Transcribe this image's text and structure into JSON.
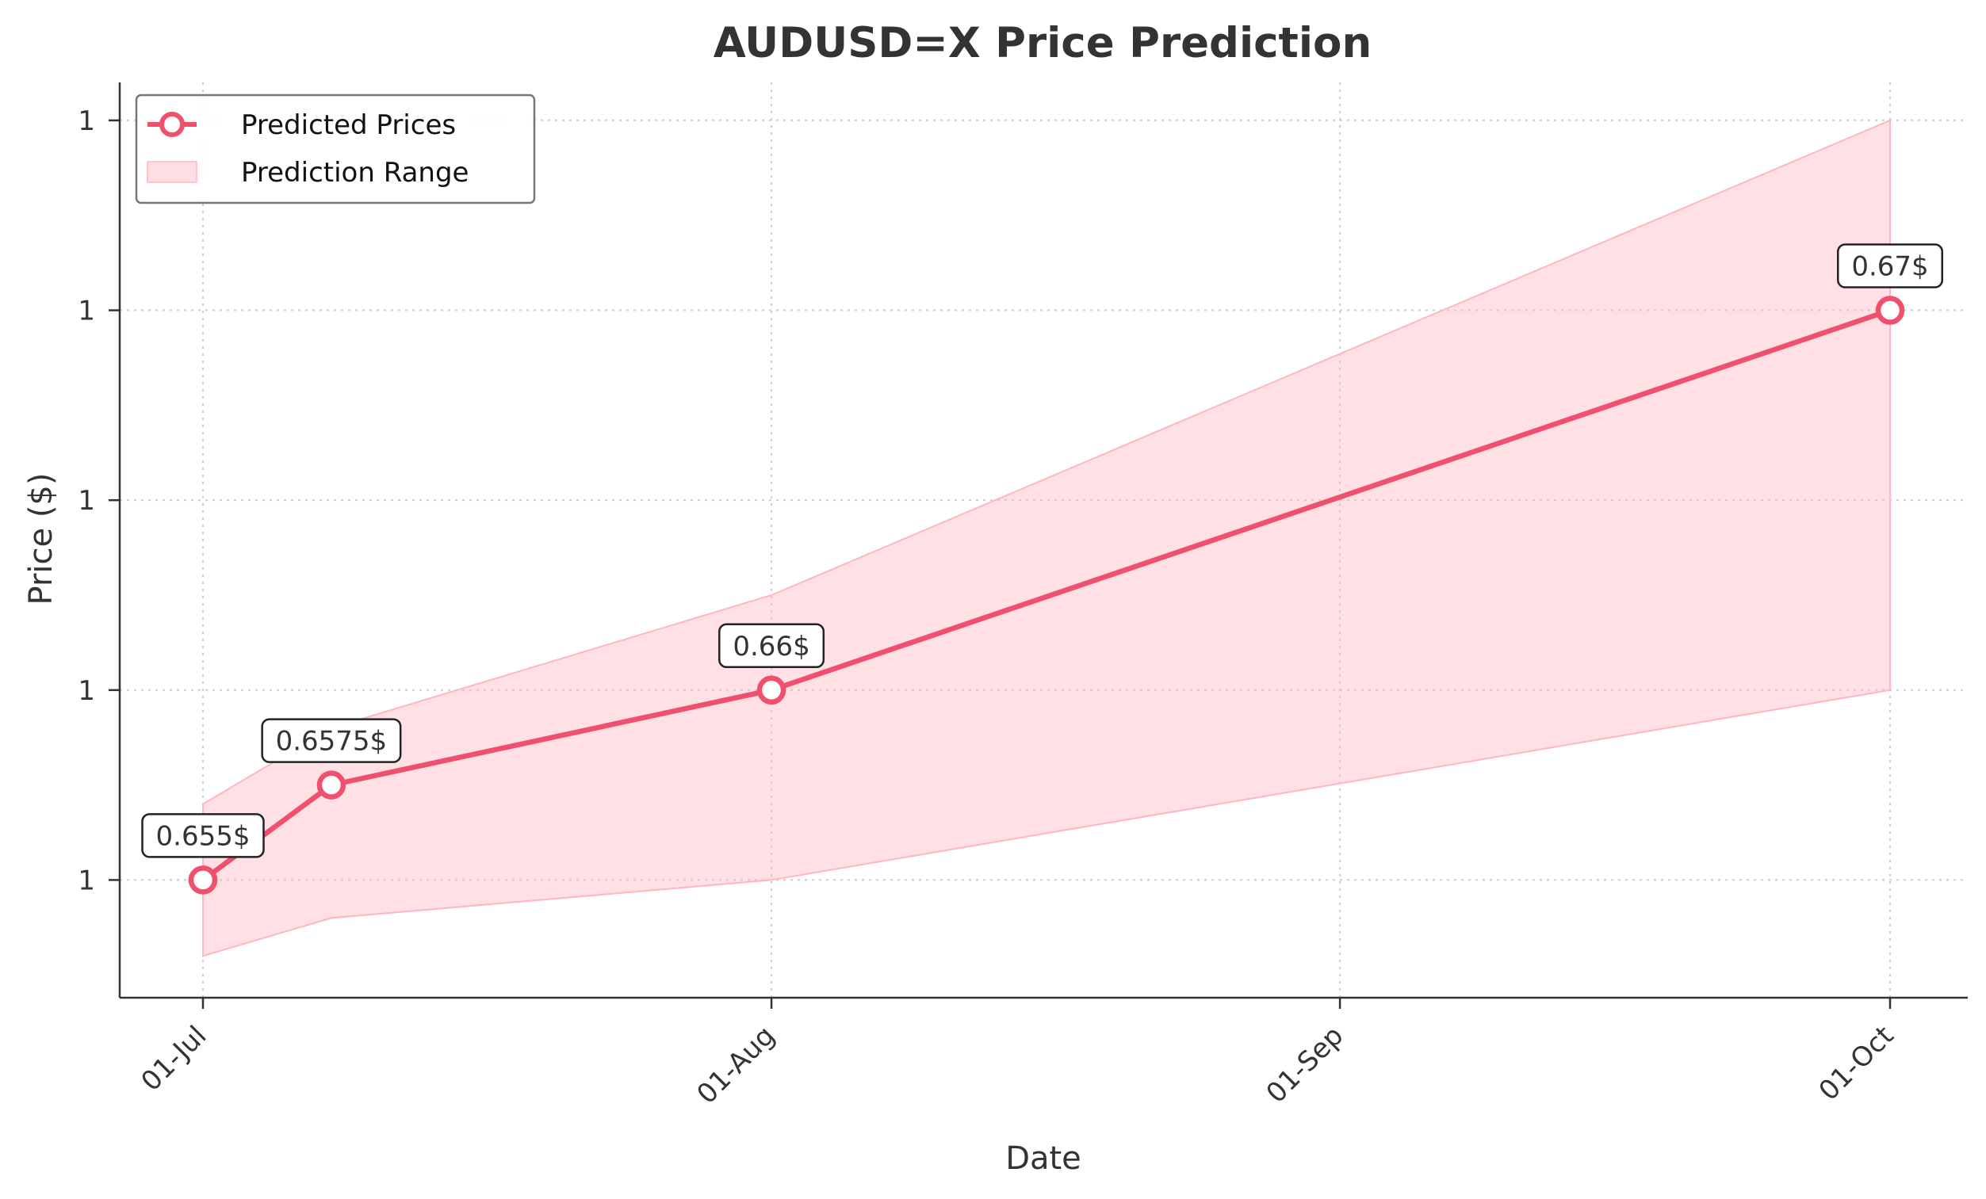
{
  "chart_data": {
    "type": "line",
    "title": "AUDUSD=X Price Prediction",
    "xlabel": "Date",
    "ylabel": "Price ($)",
    "x": [
      "2024-07-01",
      "2024-07-08",
      "2024-08-01",
      "2024-10-01"
    ],
    "x_ticks": [
      {
        "date": "2024-07-01",
        "label": "01-Jul"
      },
      {
        "date": "2024-08-01",
        "label": "01-Aug"
      },
      {
        "date": "2024-09-01",
        "label": "01-Sep"
      },
      {
        "date": "2024-10-01",
        "label": "01-Oct"
      }
    ],
    "y_ticks": [
      {
        "value": 0.655,
        "label": "1"
      },
      {
        "value": 0.66,
        "label": "1"
      },
      {
        "value": 0.665,
        "label": "1"
      },
      {
        "value": 0.67,
        "label": "1"
      },
      {
        "value": 0.675,
        "label": "1"
      }
    ],
    "ylim": [
      0.6519,
      0.676
    ],
    "grid": true,
    "legend_position": "top-left",
    "series": [
      {
        "name": "Predicted Prices",
        "values": [
          0.655,
          0.6575,
          0.66,
          0.67
        ],
        "color": "#f0506e",
        "marker": "circle"
      }
    ],
    "range": {
      "name": "Prediction Range",
      "lower": [
        0.653,
        0.654,
        0.655,
        0.66
      ],
      "upper": [
        0.657,
        0.659,
        0.6625,
        0.675
      ],
      "color": "#ffb6c1"
    },
    "annotations": [
      "0.655$",
      "0.6575$",
      "0.66$",
      "0.67$"
    ]
  }
}
